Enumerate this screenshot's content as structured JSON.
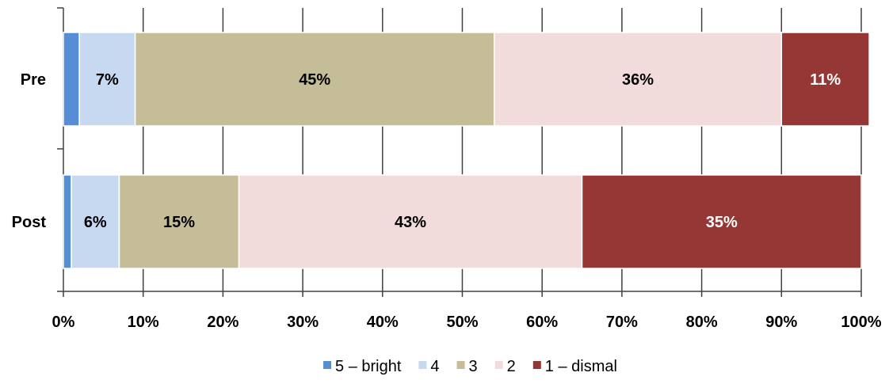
{
  "chart_data": {
    "type": "bar",
    "orientation": "horizontal",
    "stacked": "percent",
    "categories": [
      "Pre",
      "Post"
    ],
    "series": [
      {
        "name": "5 – bright",
        "color": "#558ED5",
        "values": [
          2,
          1
        ],
        "labels": [
          "",
          ""
        ],
        "label_color": "#000000"
      },
      {
        "name": "4",
        "color": "#C6D9F1",
        "values": [
          7,
          6
        ],
        "labels": [
          "7%",
          "6%"
        ],
        "label_color": "#000000"
      },
      {
        "name": "3",
        "color": "#C4BD97",
        "values": [
          45,
          15
        ],
        "labels": [
          "45%",
          "15%"
        ],
        "label_color": "#000000"
      },
      {
        "name": "2",
        "color": "#F2DCDB",
        "values": [
          36,
          43
        ],
        "labels": [
          "36%",
          "43%"
        ],
        "label_color": "#000000"
      },
      {
        "name": "1 – dismal",
        "color": "#953735",
        "values": [
          11,
          35
        ],
        "labels": [
          "11%",
          "35%"
        ],
        "label_color": "#FFFFFF"
      }
    ],
    "xlim": [
      0,
      100
    ],
    "xticks": [
      "0%",
      "10%",
      "20%",
      "30%",
      "40%",
      "50%",
      "60%",
      "70%",
      "80%",
      "90%",
      "100%"
    ],
    "grid": "vertical",
    "legend": "bottom",
    "title": "",
    "xlabel": "",
    "ylabel": ""
  }
}
